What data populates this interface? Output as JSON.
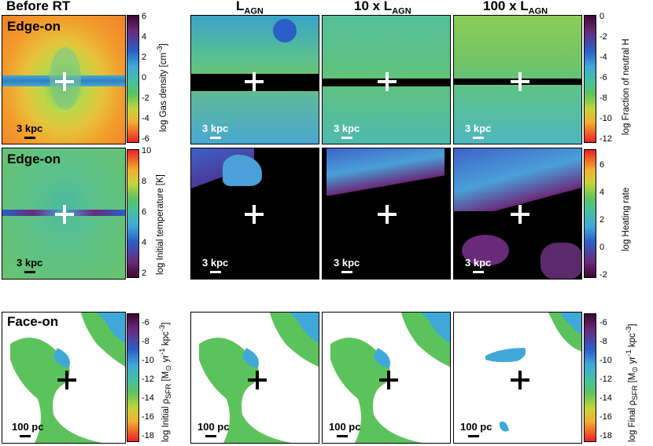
{
  "headers": {
    "before": "Before RT",
    "l_agn": "L",
    "l_agn_sub": "AGN",
    "ten": "10 x L",
    "ten_sub": "AGN",
    "hundred": "100 x L",
    "hundred_sub": "AGN"
  },
  "row_labels": {
    "row1": "Edge-on",
    "row2": "Edge-on",
    "row3": "Face-on"
  },
  "scales": {
    "kpc": "3 kpc",
    "pc": "100 pc"
  },
  "colorbars": {
    "gas_density": {
      "label": "log Gas density [cm",
      "label_sup": "-3",
      "label_end": "]",
      "ticks": [
        "6",
        "4",
        "2",
        "0",
        "-2",
        "-4",
        "-6"
      ]
    },
    "neutral_h": {
      "label": "log Fraction of neutral H",
      "ticks": [
        "0",
        "-2",
        "-4",
        "-6",
        "-8",
        "-10",
        "-12"
      ]
    },
    "init_temp": {
      "label": "log Initial temperature [K]",
      "ticks": [
        "10",
        "8",
        "6",
        "4",
        "2"
      ]
    },
    "heating": {
      "label": "log Heating rate",
      "ticks": [
        "6",
        "4",
        "2",
        "0",
        "-2"
      ]
    },
    "init_sfr": {
      "label": "log Initial ρ",
      "label_sub": "SFR",
      "label_end": " [M",
      "label_sun": "⊙",
      "label_tail": " yr",
      "label_sup1": "-1",
      "label_tail2": " kpc",
      "label_sup2": "-3",
      "label_close": "]",
      "ticks": [
        "-6",
        "-8",
        "-10",
        "-12",
        "-14",
        "-16",
        "-18"
      ]
    },
    "final_sfr": {
      "label": "log Final ρ",
      "label_sub": "SFR",
      "label_end": " [M",
      "label_sun": "⊙",
      "label_tail": " yr",
      "label_sup1": "-1",
      "label_tail2": " kpc",
      "label_sup2": "-3",
      "label_close": "]",
      "ticks": [
        "-6",
        "-8",
        "-10",
        "-12",
        "-14",
        "-16",
        "-18"
      ]
    }
  },
  "colors": {
    "scale_white": "#ffffff",
    "scale_black": "#000000"
  }
}
